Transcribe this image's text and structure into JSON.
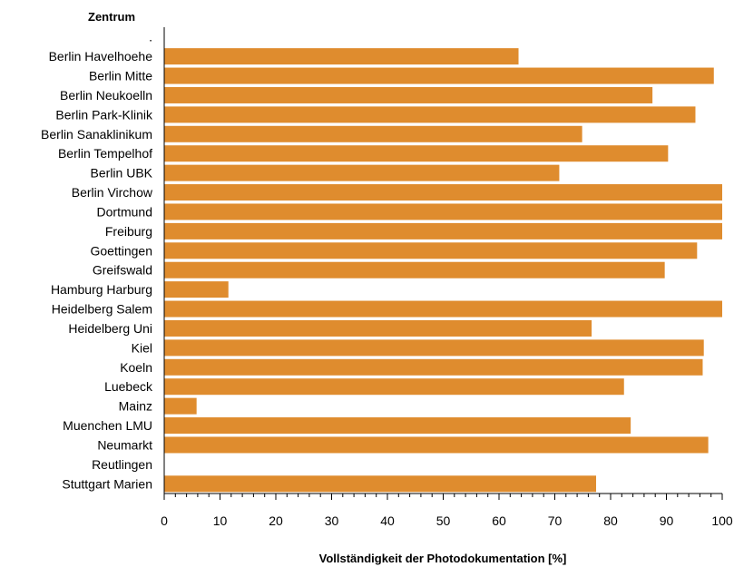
{
  "chart_data": {
    "type": "bar",
    "orientation": "horizontal",
    "y_header": "Zentrum",
    "xlabel": "Vollständigkeit der Photodokumentation [%]",
    "xlim": [
      0,
      100
    ],
    "x_ticks": [
      "0",
      "10",
      "20",
      "30",
      "40",
      "50",
      "60",
      "70",
      "80",
      "90",
      "100"
    ],
    "bar_color": "#DF8C2E",
    "grid": false,
    "categories": [
      ".",
      "Berlin Havelhoehe",
      "Berlin Mitte",
      "Berlin Neukoelln",
      "Berlin Park-Klinik",
      "Berlin Sanaklinikum",
      "Berlin Tempelhof",
      "Berlin UBK",
      "Berlin Virchow",
      "Dortmund",
      "Freiburg",
      "Goettingen",
      "Greifswald",
      "Hamburg Harburg",
      "Heidelberg Salem",
      "Heidelberg Uni",
      "Kiel",
      "Koeln",
      "Luebeck",
      "Mainz",
      "Muenchen LMU",
      "Neumarkt",
      "Reutlingen",
      "Stuttgart Marien"
    ],
    "values": [
      0,
      63.5,
      98.5,
      87.5,
      95.2,
      74.9,
      90.3,
      70.8,
      100,
      100,
      100,
      95.5,
      89.7,
      11.5,
      100,
      76.6,
      96.7,
      96.5,
      82.4,
      5.8,
      83.6,
      97.5,
      0,
      77.4
    ]
  }
}
